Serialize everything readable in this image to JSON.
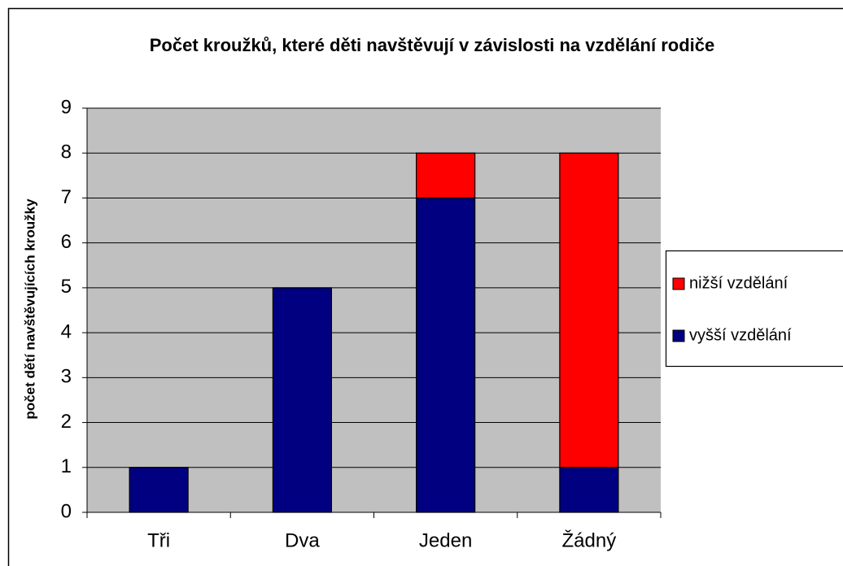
{
  "chart_data": {
    "type": "stacked_bar",
    "title": "Počet kroužků, které děti navštěvují v závislosti na vzdělání rodiče",
    "ylabel": "počet dětí navštěvujících kroužky",
    "categories": [
      "Tři",
      "Dva",
      "Jeden",
      "Žádný"
    ],
    "series": [
      {
        "name": "vyšší vzdělání",
        "color": "#000080",
        "values": [
          1,
          5,
          7,
          1
        ]
      },
      {
        "name": "nižší vzdělání",
        "color": "#ff0000",
        "values": [
          0,
          0,
          1,
          7
        ]
      }
    ],
    "ylim": [
      0,
      9
    ],
    "yticks": [
      0,
      1,
      2,
      3,
      4,
      5,
      6,
      7,
      8,
      9
    ],
    "grid": true,
    "legend": "right"
  }
}
